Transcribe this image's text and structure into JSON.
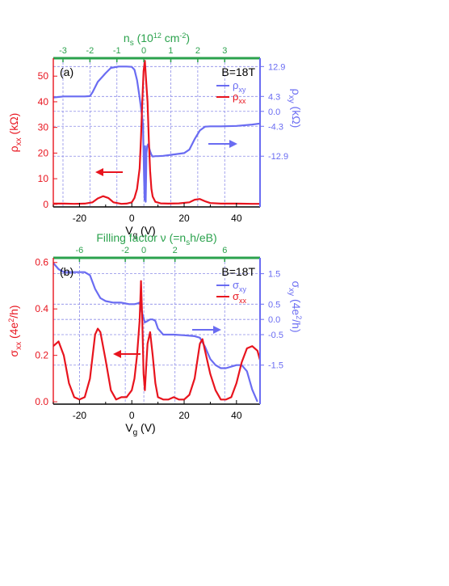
{
  "colors": {
    "red": "#e8141e",
    "blue": "#6a6cf2",
    "green": "#2ba24d",
    "grid": "#8c8ce8",
    "black": "#000000"
  },
  "chart_data": [
    {
      "type": "line",
      "panel_label": "(a)",
      "field_label": "B=18T",
      "xlabel": "V",
      "xlabel_sub": "g",
      "xlabel_unit": " (V)",
      "xlim": [
        -30,
        49
      ],
      "xticks": [
        "-20",
        "0",
        "20",
        "40"
      ],
      "top_axis": {
        "label": "n",
        "label_sub": "s",
        "label_rest": " (10",
        "label_sup": "12",
        "label_end": " cm",
        "label_sup2": "-2",
        "label_close": ")",
        "ticks": [
          "-3",
          "-2",
          "-1",
          "0",
          "1",
          "2",
          "3"
        ],
        "tick_vg": [
          -26.3,
          -16.0,
          -5.7,
          4.6,
          14.9,
          25.2,
          35.5
        ]
      },
      "left_axis": {
        "label": "ρ",
        "label_sub": "xx",
        "label_unit": " (kΩ)",
        "ylim": [
          -1,
          57
        ],
        "ticks": [
          "0",
          "10",
          "20",
          "30",
          "40",
          "50"
        ]
      },
      "right_axis": {
        "label": "ρ",
        "label_sub": "xy",
        "label_unit": " (kΩ)",
        "ylim": [
          -27.5,
          15.3
        ],
        "ticks": [
          "12.9",
          "4.3",
          "0.0",
          "-4.3",
          "-12.9"
        ],
        "tick_values": [
          12.9,
          4.3,
          0.0,
          -4.3,
          -12.9
        ]
      },
      "legend": [
        "ρ",
        "ρ"
      ],
      "legend_subs": [
        "xy",
        "xx"
      ],
      "series": [
        {
          "name": "ρxy",
          "axis": "right",
          "x": [
            -30,
            -26,
            -22,
            -18,
            -16,
            -15,
            -13,
            -10,
            -8,
            -5,
            -2,
            0,
            1,
            2,
            3,
            3.5,
            4,
            4.3,
            4.5,
            4.7,
            4.9,
            5.1,
            5.3,
            5.6,
            5.9,
            6.2,
            6.5,
            7,
            7.5,
            8,
            9,
            10,
            12,
            16,
            20,
            22,
            24,
            26,
            28,
            30,
            34,
            40,
            46,
            49
          ],
          "y": [
            4.0,
            4.3,
            4.3,
            4.3,
            4.4,
            5.5,
            8.5,
            11.0,
            12.5,
            12.9,
            12.9,
            12.8,
            12.0,
            9.0,
            4.0,
            1.0,
            -2.0,
            -4.0,
            -12.0,
            -19.0,
            -25.5,
            -10.0,
            -26.0,
            -12.0,
            -10.0,
            -9.5,
            -10.2,
            -11.5,
            -12.5,
            -13.0,
            -12.9,
            -12.9,
            -12.8,
            -12.4,
            -12.0,
            -11.0,
            -8.0,
            -5.5,
            -4.4,
            -4.3,
            -4.3,
            -4.2,
            -3.8,
            -3.5
          ]
        },
        {
          "name": "ρxx",
          "axis": "left",
          "x": [
            -30,
            -26,
            -22,
            -18,
            -15,
            -13,
            -11,
            -9,
            -7,
            -4,
            -2,
            0,
            1,
            2,
            3,
            3.5,
            4,
            4.5,
            5,
            5.5,
            6,
            6.5,
            7,
            7.5,
            8,
            9,
            11,
            14,
            18,
            22,
            24,
            26,
            28,
            30,
            34,
            40,
            46,
            49
          ],
          "y": [
            0.3,
            0.3,
            0.2,
            0.3,
            0.8,
            2.3,
            3.2,
            2.5,
            0.8,
            0.2,
            0.3,
            0.8,
            2.5,
            6.0,
            14.0,
            26.0,
            40.0,
            52.0,
            56.0,
            48.0,
            40.0,
            25.0,
            13.0,
            6.0,
            3.0,
            1.0,
            0.4,
            0.3,
            0.4,
            0.8,
            1.8,
            2.1,
            1.2,
            0.5,
            0.3,
            0.3,
            0.2,
            0.2
          ]
        }
      ]
    },
    {
      "type": "line",
      "panel_label": "(b)",
      "field_label": "B=18T",
      "xlabel": "V",
      "xlabel_sub": "g",
      "xlabel_unit": " (V)",
      "xlim": [
        -30,
        49
      ],
      "xticks": [
        "-20",
        "0",
        "20",
        "40"
      ],
      "top_axis": {
        "label": "Filling factor ν (=n",
        "label_sub": "s",
        "label_rest": "h/eB)",
        "ticks": [
          "-6",
          "-2",
          "0",
          "2",
          "6"
        ],
        "tick_vg": [
          -20.0,
          -2.5,
          4.6,
          16.5,
          35.5
        ]
      },
      "left_axis": {
        "label": "σ",
        "label_sub": "xx",
        "label_unit": " (4e",
        "label_sup": "2",
        "label_end": "/h)",
        "ylim": [
          -0.01,
          0.62
        ],
        "ticks": [
          "0.0",
          "0.2",
          "0.4",
          "0.6"
        ]
      },
      "right_axis": {
        "label": "σ",
        "label_sub": "xy",
        "label_unit": " (4e",
        "label_sup": "2",
        "label_end": "/h)",
        "ylim": [
          -2.78,
          2.02
        ],
        "ticks": [
          "1.5",
          "0.5",
          "0.0",
          "-0.5",
          "-1.5"
        ],
        "tick_values": [
          1.5,
          0.5,
          0.0,
          -0.5,
          -1.5
        ]
      },
      "legend": [
        "σ",
        "σ"
      ],
      "legend_subs": [
        "xy",
        "xx"
      ],
      "series": [
        {
          "name": "σxy",
          "axis": "right",
          "x": [
            -30,
            -28,
            -26,
            -22,
            -18,
            -16,
            -14,
            -12,
            -10,
            -7,
            -4,
            -1,
            1,
            2,
            3,
            4,
            5,
            6,
            7,
            8,
            9,
            10,
            12,
            16,
            20,
            24,
            26,
            28,
            30,
            32,
            34,
            36,
            38,
            40,
            42,
            44,
            46,
            48
          ],
          "y": [
            1.85,
            1.65,
            1.55,
            1.55,
            1.55,
            1.45,
            1.0,
            0.7,
            0.6,
            0.55,
            0.55,
            0.5,
            0.5,
            0.52,
            0.55,
            0.2,
            -0.1,
            -0.05,
            0.0,
            0.0,
            -0.05,
            -0.3,
            -0.5,
            -0.5,
            -0.52,
            -0.55,
            -0.6,
            -0.9,
            -1.3,
            -1.5,
            -1.6,
            -1.6,
            -1.55,
            -1.5,
            -1.5,
            -1.7,
            -2.3,
            -2.7
          ]
        },
        {
          "name": "σxx",
          "axis": "left",
          "x": [
            -30,
            -28,
            -26,
            -24,
            -22,
            -20,
            -18,
            -16,
            -14,
            -13,
            -12,
            -10,
            -8,
            -6,
            -4,
            -2,
            0,
            1,
            2,
            3,
            3.5,
            4,
            4.5,
            5,
            5.5,
            6,
            7,
            8,
            9,
            10,
            12,
            14,
            16,
            18,
            20,
            22,
            24,
            26,
            27,
            28,
            30,
            32,
            34,
            36,
            38,
            40,
            42,
            44,
            46,
            48,
            49
          ],
          "y": [
            0.24,
            0.26,
            0.2,
            0.08,
            0.02,
            0.01,
            0.02,
            0.1,
            0.29,
            0.315,
            0.3,
            0.18,
            0.05,
            0.01,
            0.02,
            0.02,
            0.05,
            0.1,
            0.2,
            0.35,
            0.52,
            0.35,
            0.12,
            0.05,
            0.15,
            0.25,
            0.3,
            0.2,
            0.08,
            0.02,
            0.01,
            0.01,
            0.02,
            0.01,
            0.01,
            0.03,
            0.1,
            0.25,
            0.27,
            0.22,
            0.12,
            0.05,
            0.01,
            0.01,
            0.02,
            0.08,
            0.17,
            0.23,
            0.24,
            0.22,
            0.18
          ]
        }
      ]
    }
  ]
}
